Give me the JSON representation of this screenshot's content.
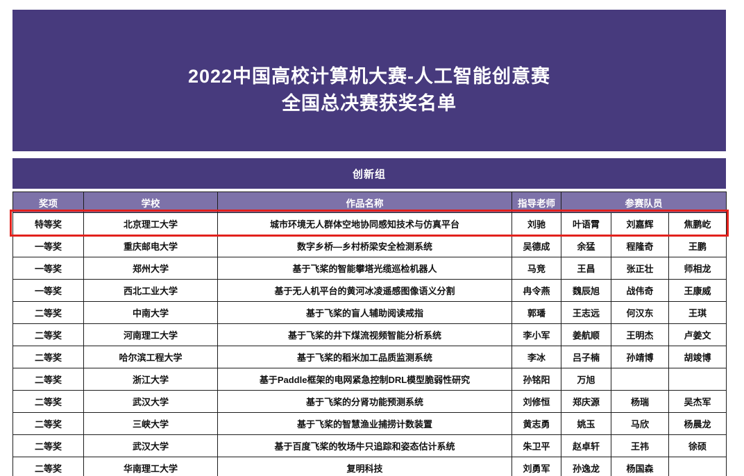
{
  "banner": {
    "title_line1": "2022中国高校计算机大赛-人工智能创意赛",
    "title_line2": "全国总决赛获奖名单"
  },
  "group": {
    "label": "创新组"
  },
  "table": {
    "headers": {
      "award": "奖项",
      "school": "学校",
      "work": "作品名称",
      "advisor": "指导老师",
      "members": "参赛队员"
    },
    "rows": [
      {
        "award": "特等奖",
        "school": "北京理工大学",
        "work": "城市环境无人群体空地协同感知技术与仿真平台",
        "advisor": "刘驰",
        "members": [
          "叶语霄",
          "刘嘉辉",
          "焦鹏屹"
        ],
        "highlighted": true
      },
      {
        "award": "一等奖",
        "school": "重庆邮电大学",
        "work": "数字乡桥—乡村桥梁安全检测系统",
        "advisor": "吴德成",
        "members": [
          "余猛",
          "程隆奇",
          "王鹏"
        ],
        "highlighted": false
      },
      {
        "award": "一等奖",
        "school": "郑州大学",
        "work": "基于飞桨的智能攀塔光缆巡检机器人",
        "advisor": "马竞",
        "members": [
          "王昌",
          "张正壮",
          "师相龙"
        ],
        "highlighted": false
      },
      {
        "award": "一等奖",
        "school": "西北工业大学",
        "work": "基于无人机平台的黄河冰凌遥感图像语义分割",
        "advisor": "冉令燕",
        "members": [
          "魏辰旭",
          "战伟奇",
          "王康威"
        ],
        "highlighted": false
      },
      {
        "award": "二等奖",
        "school": "中南大学",
        "work": "基于飞桨的盲人辅助阅读戒指",
        "advisor": "郭璠",
        "members": [
          "王志远",
          "何汉东",
          "王琪"
        ],
        "highlighted": false
      },
      {
        "award": "二等奖",
        "school": "河南理工大学",
        "work": "基于飞桨的井下煤流视频智能分析系统",
        "advisor": "李小军",
        "members": [
          "姜航顺",
          "王明杰",
          "卢姜文"
        ],
        "highlighted": false
      },
      {
        "award": "二等奖",
        "school": "哈尔滨工程大学",
        "work": "基于飞桨的稻米加工品质监测系统",
        "advisor": "李冰",
        "members": [
          "吕子楠",
          "孙靖博",
          "胡竣博"
        ],
        "highlighted": false
      },
      {
        "award": "二等奖",
        "school": "浙江大学",
        "work": "基于Paddle框架的电网紧急控制DRL模型脆弱性研究",
        "advisor": "孙铭阳",
        "members": [
          "万旭",
          "",
          ""
        ],
        "highlighted": false
      },
      {
        "award": "二等奖",
        "school": "武汉大学",
        "work": "基于飞桨的分肾功能预测系统",
        "advisor": "刘修恒",
        "members": [
          "郑庆源",
          "杨瑞",
          "吴杰军"
        ],
        "highlighted": false
      },
      {
        "award": "二等奖",
        "school": "三峡大学",
        "work": "基于飞桨的智慧渔业捕捞计数装置",
        "advisor": "黄志勇",
        "members": [
          "姚玉",
          "马欣",
          "杨晨龙"
        ],
        "highlighted": false
      },
      {
        "award": "二等奖",
        "school": "武汉大学",
        "work": "基于百度飞桨的牧场牛只追踪和姿态估计系统",
        "advisor": "朱卫平",
        "members": [
          "赵卓轩",
          "王祎",
          "徐硕"
        ],
        "highlighted": false
      },
      {
        "award": "二等奖",
        "school": "华南理工大学",
        "work": "复明科技",
        "advisor": "刘勇军",
        "members": [
          "孙逸龙",
          "杨国森",
          ""
        ],
        "highlighted": false
      }
    ]
  },
  "colors": {
    "banner_purple": "#473A7D",
    "header_purple": "#7D72A9",
    "highlight_red": "#E2211C"
  }
}
